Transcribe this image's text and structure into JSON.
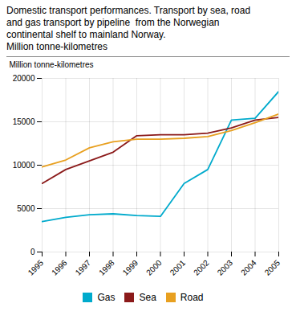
{
  "chart_data": {
    "type": "line",
    "title": "Domestic transport performances. Transport by sea, road\nand gas transport by pipeline  from the Norwegian\ncontinental shelf to mainland Norway.\nMillion tonne-kilometres",
    "y_label": "Million tonne-kilometres",
    "x": [
      1995,
      1996,
      1997,
      1998,
      1999,
      2000,
      2001,
      2002,
      2003,
      2004,
      2005
    ],
    "series": [
      {
        "name": "Gas",
        "color": "#00AACC",
        "values": [
          3500,
          4000,
          4300,
          4400,
          4200,
          4100,
          7900,
          9500,
          15200,
          15400,
          18500
        ]
      },
      {
        "name": "Sea",
        "color": "#8B1A1A",
        "values": [
          7900,
          9500,
          10500,
          11500,
          13400,
          13500,
          13500,
          13700,
          14300,
          15200,
          15500
        ]
      },
      {
        "name": "Road",
        "color": "#E8A020",
        "values": [
          9800,
          10600,
          12000,
          12700,
          13000,
          13000,
          13100,
          13300,
          14000,
          14900,
          15900
        ]
      }
    ],
    "xlim": [
      1995,
      2005
    ],
    "xticks": [
      1995,
      1996,
      1997,
      1998,
      1999,
      2000,
      2001,
      2002,
      2003,
      2004,
      2005
    ],
    "ylim": [
      0,
      20000
    ],
    "yticks": [
      0,
      5000,
      10000,
      15000,
      20000
    ],
    "grid": true,
    "legend": "bottom"
  }
}
